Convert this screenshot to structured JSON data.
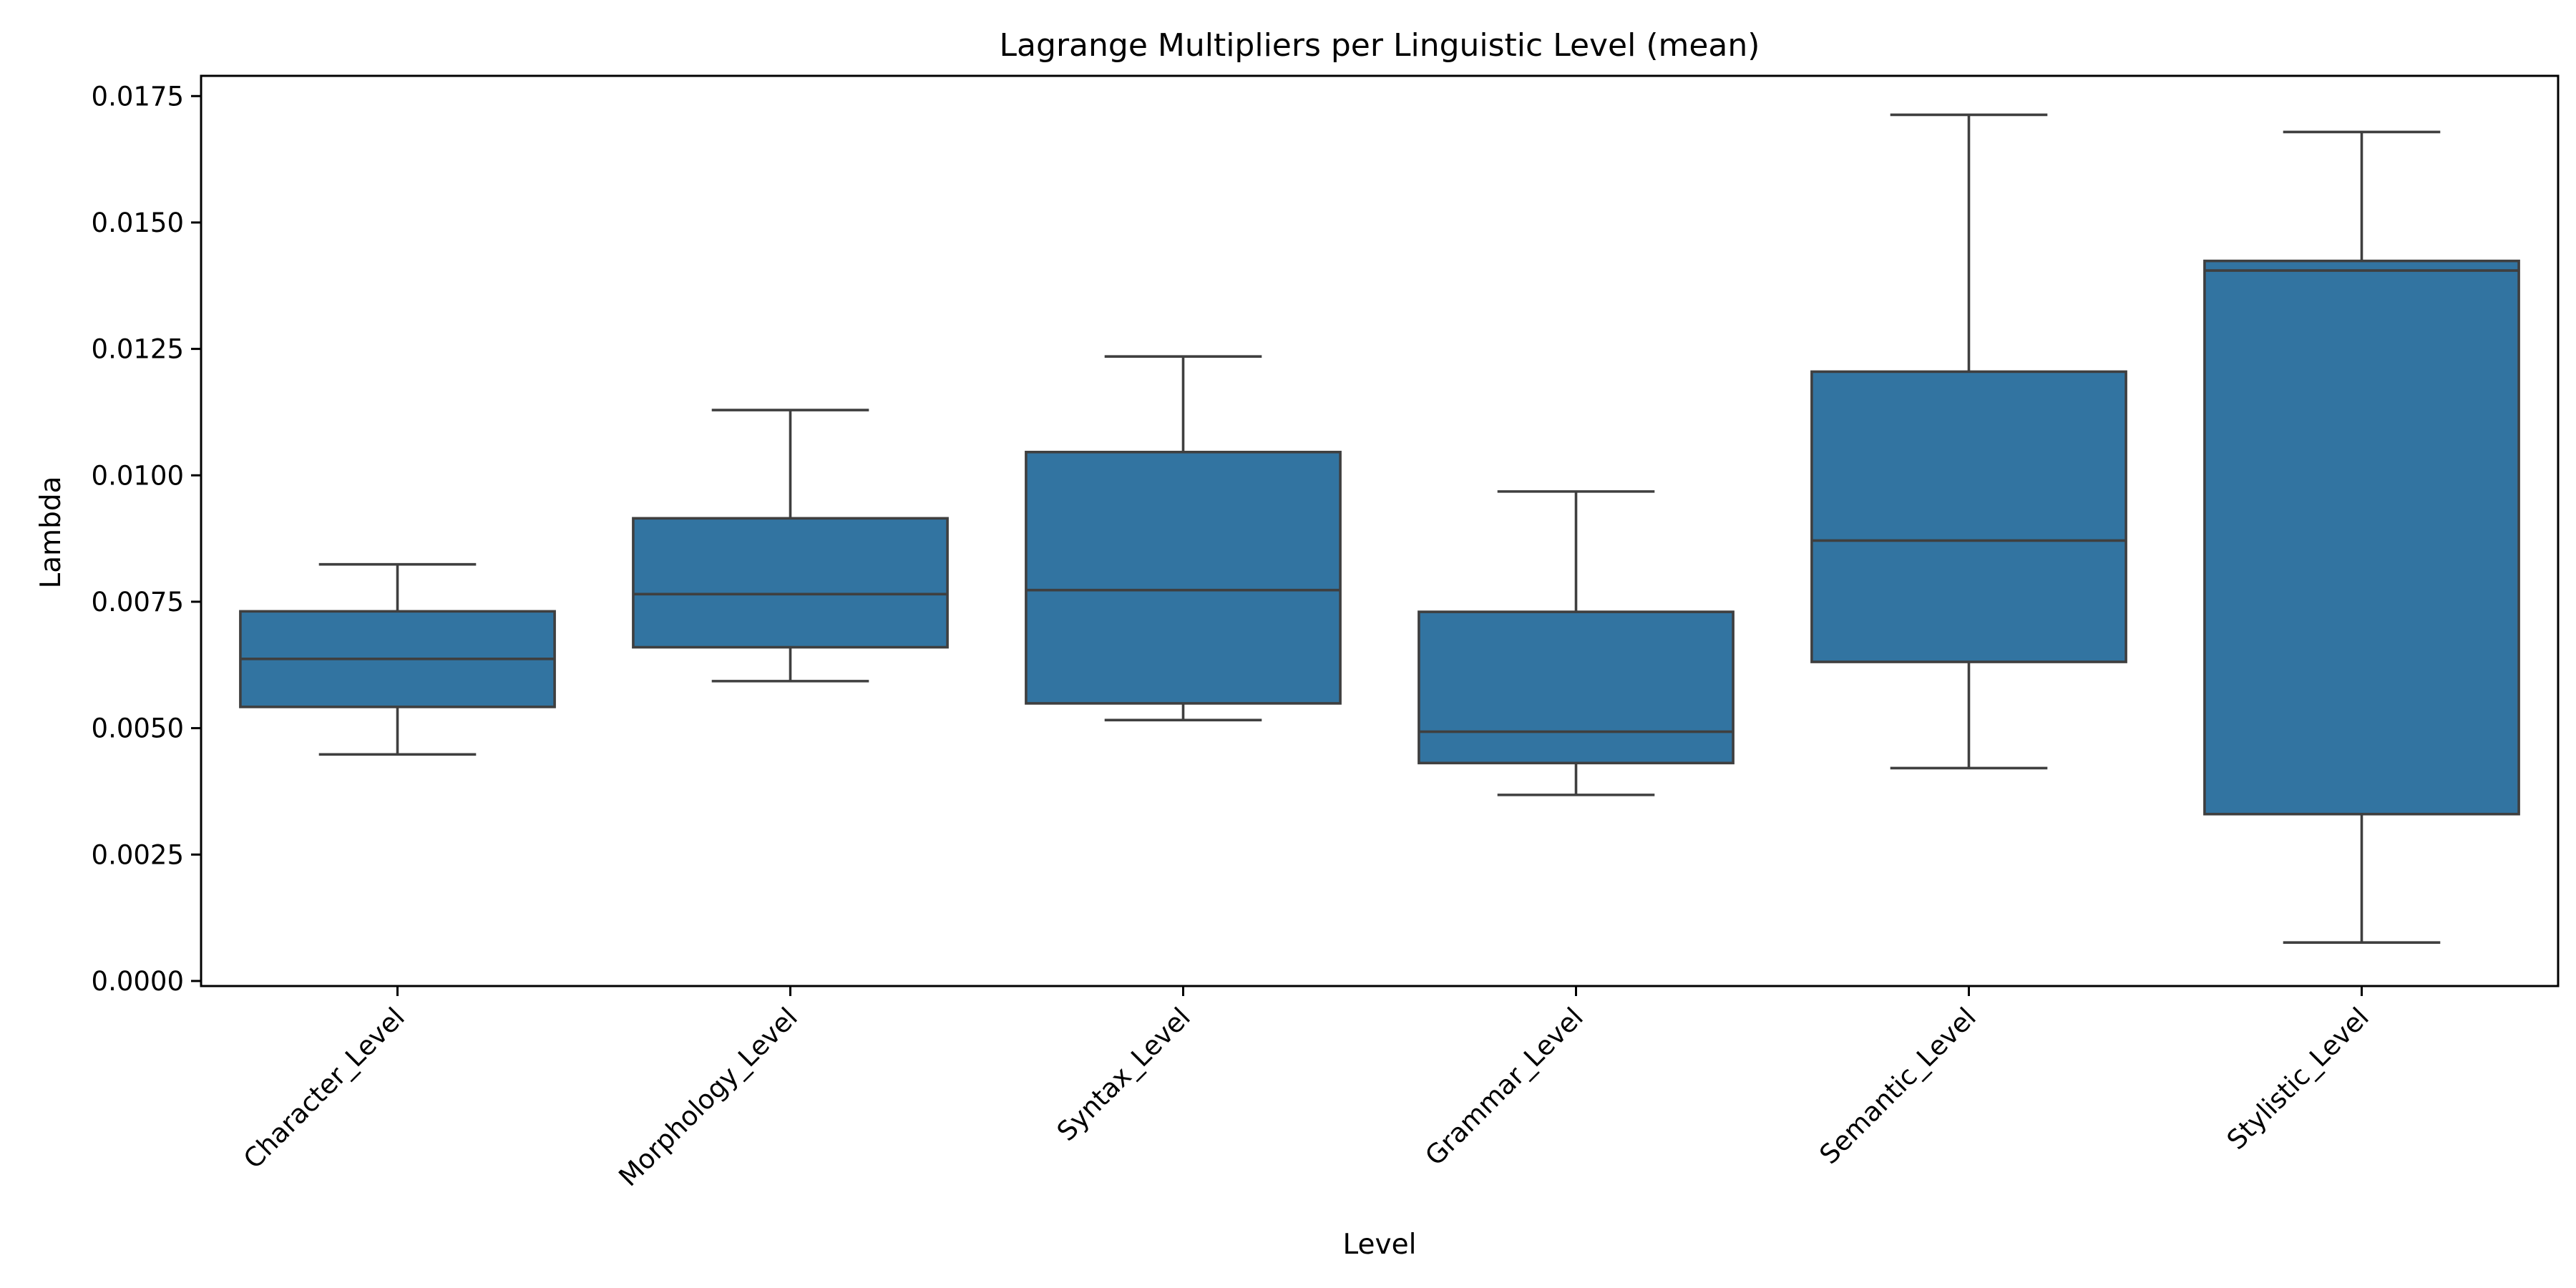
{
  "chart_data": {
    "type": "box",
    "title": "Lagrange Multipliers per Linguistic Level (mean)",
    "xlabel": "Level",
    "ylabel": "Lambda",
    "ylim": [
      -0.0001,
      0.0179
    ],
    "yticks": [
      0.0,
      0.0025,
      0.005,
      0.0075,
      0.01,
      0.0125,
      0.015,
      0.0175
    ],
    "ytick_labels": [
      "0.0000",
      "0.0025",
      "0.0050",
      "0.0075",
      "0.0100",
      "0.0125",
      "0.0150",
      "0.0175"
    ],
    "grid": false,
    "box_color": "#3274a1",
    "line_color": "#3f3f3f",
    "categories": [
      "Character_Level",
      "Morphology_Level",
      "Syntax_Level",
      "Grammar_Level",
      "Semantic_Level",
      "Stylistic_Level"
    ],
    "boxes": [
      {
        "whisker_low": 0.00448,
        "q1": 0.00542,
        "median": 0.00637,
        "q3": 0.00731,
        "whisker_high": 0.00824
      },
      {
        "whisker_low": 0.00593,
        "q1": 0.0066,
        "median": 0.00765,
        "q3": 0.00915,
        "whisker_high": 0.01129
      },
      {
        "whisker_low": 0.00516,
        "q1": 0.00549,
        "median": 0.00773,
        "q3": 0.01046,
        "whisker_high": 0.01235
      },
      {
        "whisker_low": 0.00368,
        "q1": 0.00431,
        "median": 0.00493,
        "q3": 0.0073,
        "whisker_high": 0.00968
      },
      {
        "whisker_low": 0.00421,
        "q1": 0.00631,
        "median": 0.00871,
        "q3": 0.01205,
        "whisker_high": 0.01713
      },
      {
        "whisker_low": 0.00076,
        "q1": 0.0033,
        "median": 0.01405,
        "q3": 0.01424,
        "whisker_high": 0.01679
      }
    ]
  }
}
